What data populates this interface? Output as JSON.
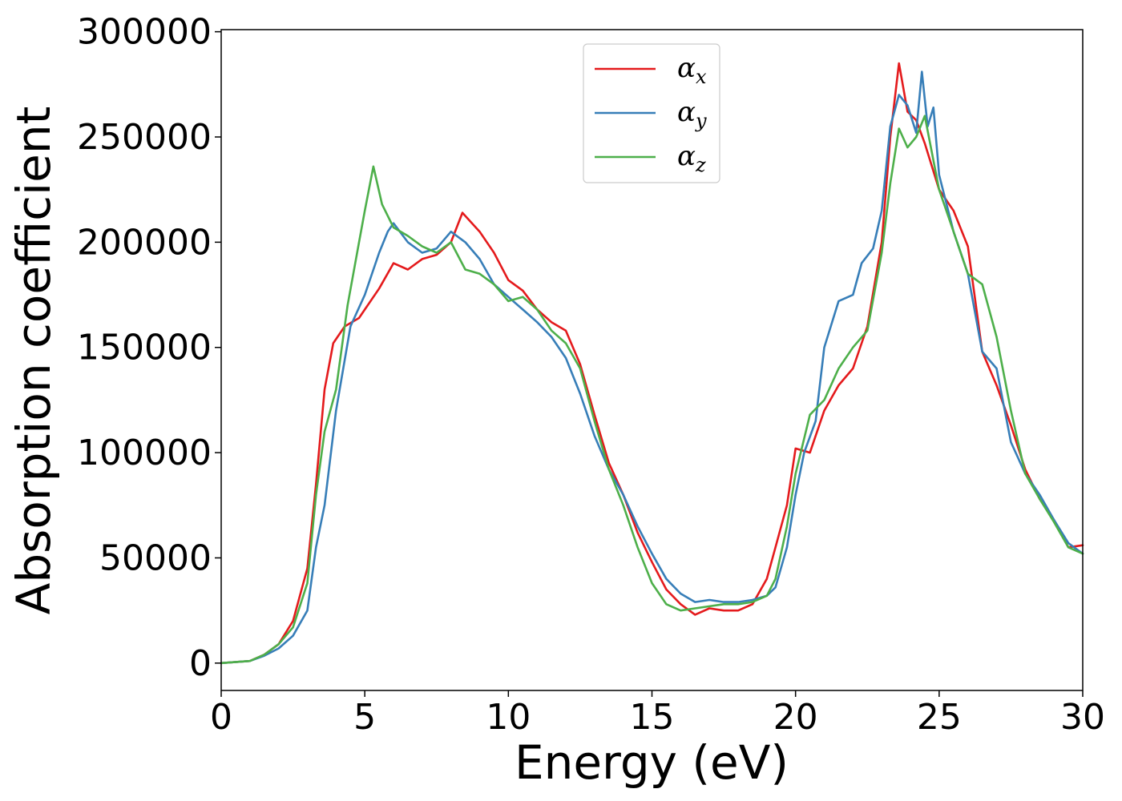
{
  "chart_data": {
    "type": "line",
    "xlabel": "Energy (eV)",
    "ylabel": "Absorption coefficient",
    "xlim": [
      0,
      30
    ],
    "ylim": [
      -13000,
      301000
    ],
    "xticks": [
      0,
      5,
      10,
      15,
      20,
      25,
      30
    ],
    "xtick_labels": [
      "0",
      "5",
      "10",
      "15",
      "20",
      "25",
      "30"
    ],
    "yticks": [
      0,
      50000,
      100000,
      150000,
      200000,
      250000,
      300000
    ],
    "ytick_labels": [
      "0",
      "50000",
      "100000",
      "150000",
      "200000",
      "250000",
      "300000"
    ],
    "grid": false,
    "legend_position": "top-center",
    "series": [
      {
        "name": "α",
        "subscript": "x",
        "color": "#e41a1c",
        "x": [
          0,
          1,
          1.5,
          2,
          2.5,
          3,
          3.3,
          3.6,
          3.9,
          4.3,
          4.8,
          5.0,
          5.5,
          6.0,
          6.5,
          7.0,
          7.5,
          8.0,
          8.4,
          9.0,
          9.5,
          10.0,
          10.5,
          11.0,
          11.5,
          12.0,
          12.5,
          13.0,
          13.5,
          14.0,
          14.5,
          15.0,
          15.5,
          16.0,
          16.5,
          17.0,
          17.5,
          18.0,
          18.5,
          19.0,
          19.3,
          19.7,
          20.0,
          20.5,
          21.0,
          21.5,
          22.0,
          22.5,
          23.0,
          23.3,
          23.6,
          23.9,
          24.2,
          24.5,
          25.0,
          25.5,
          26.0,
          26.5,
          27.0,
          27.5,
          28.0,
          28.5,
          29.0,
          29.5,
          30.0
        ],
        "values": [
          0,
          1000,
          4000,
          9000,
          20000,
          45000,
          85000,
          130000,
          152000,
          160000,
          164000,
          168000,
          178000,
          190000,
          187000,
          192000,
          194000,
          200000,
          214000,
          205000,
          195000,
          182000,
          177000,
          168000,
          162000,
          158000,
          142000,
          118000,
          95000,
          80000,
          62000,
          48000,
          35000,
          28000,
          23000,
          26000,
          25000,
          25000,
          28000,
          40000,
          55000,
          75000,
          102000,
          100000,
          120000,
          132000,
          140000,
          160000,
          200000,
          250000,
          285000,
          262000,
          258000,
          247000,
          225000,
          215000,
          198000,
          148000,
          132000,
          113000,
          92000,
          78000,
          68000,
          55000,
          56000
        ]
      },
      {
        "name": "α",
        "subscript": "y",
        "color": "#377eb8",
        "x": [
          0,
          1,
          1.5,
          2,
          2.5,
          3,
          3.3,
          3.6,
          4.0,
          4.5,
          5.0,
          5.5,
          5.8,
          6.0,
          6.5,
          7.0,
          7.5,
          8.0,
          8.5,
          9.0,
          9.5,
          10.0,
          10.5,
          11.0,
          11.5,
          12.0,
          12.5,
          13.0,
          13.5,
          14.0,
          14.5,
          15.0,
          15.5,
          16.0,
          16.5,
          17.0,
          17.5,
          18.0,
          18.5,
          19.0,
          19.3,
          19.7,
          20.0,
          20.3,
          20.7,
          21.0,
          21.5,
          22.0,
          22.3,
          22.7,
          23.0,
          23.3,
          23.6,
          23.9,
          24.2,
          24.4,
          24.6,
          24.8,
          25.0,
          25.5,
          26.0,
          26.5,
          27.0,
          27.5,
          28.0,
          28.5,
          29.0,
          29.5,
          30.0
        ],
        "values": [
          0,
          1000,
          3500,
          7000,
          13000,
          25000,
          55000,
          75000,
          120000,
          160000,
          175000,
          195000,
          205000,
          209000,
          200000,
          195000,
          197000,
          205000,
          200000,
          192000,
          180000,
          174000,
          168000,
          162000,
          155000,
          145000,
          128000,
          108000,
          92000,
          80000,
          65000,
          52000,
          40000,
          33000,
          29000,
          30000,
          29000,
          29000,
          30000,
          32000,
          36000,
          55000,
          80000,
          100000,
          115000,
          150000,
          172000,
          175000,
          190000,
          197000,
          215000,
          255000,
          270000,
          265000,
          252000,
          281000,
          255000,
          264000,
          232000,
          205000,
          185000,
          148000,
          140000,
          105000,
          90000,
          80000,
          68000,
          57000,
          52000
        ]
      },
      {
        "name": "α",
        "subscript": "z",
        "color": "#4daf4a",
        "x": [
          0,
          1,
          1.5,
          2,
          2.5,
          3,
          3.3,
          3.6,
          4.0,
          4.4,
          4.8,
          5.0,
          5.3,
          5.6,
          6.0,
          6.5,
          7.0,
          7.5,
          8.0,
          8.5,
          9.0,
          9.5,
          10.0,
          10.5,
          11.0,
          11.5,
          12.0,
          12.5,
          13.0,
          13.5,
          14.0,
          14.5,
          15.0,
          15.5,
          16.0,
          16.5,
          17.0,
          17.5,
          18.0,
          18.5,
          19.0,
          19.3,
          19.7,
          20.0,
          20.5,
          21.0,
          21.5,
          22.0,
          22.5,
          23.0,
          23.3,
          23.6,
          23.9,
          24.2,
          24.5,
          25.0,
          25.5,
          26.0,
          26.5,
          27.0,
          27.5,
          28.0,
          28.5,
          29.0,
          29.5,
          30.0
        ],
        "values": [
          0,
          1000,
          4000,
          9000,
          17000,
          38000,
          80000,
          110000,
          130000,
          170000,
          200000,
          215000,
          236000,
          218000,
          207000,
          203000,
          198000,
          195000,
          200000,
          187000,
          185000,
          180000,
          172000,
          174000,
          168000,
          158000,
          152000,
          140000,
          115000,
          92000,
          75000,
          55000,
          38000,
          28000,
          25000,
          26000,
          27000,
          28000,
          28000,
          29000,
          32000,
          40000,
          65000,
          90000,
          118000,
          125000,
          140000,
          150000,
          158000,
          195000,
          228000,
          254000,
          245000,
          250000,
          260000,
          225000,
          205000,
          185000,
          180000,
          155000,
          120000,
          90000,
          78000,
          67000,
          55000,
          52000
        ]
      }
    ]
  }
}
